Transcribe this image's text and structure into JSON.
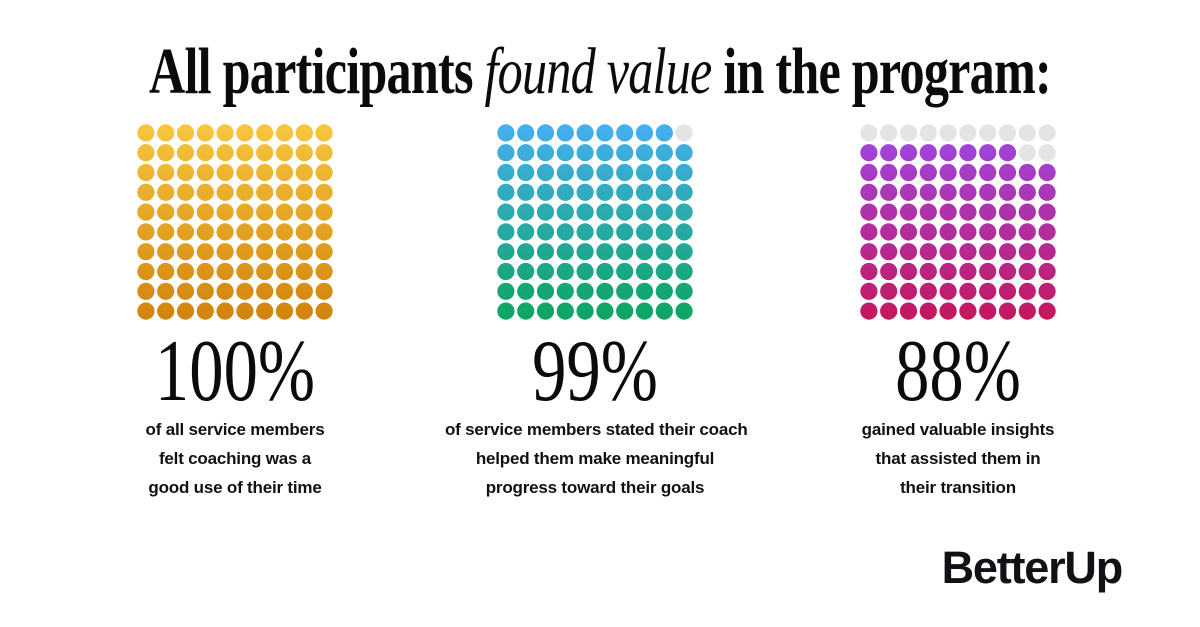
{
  "page": {
    "background_color": "#ffffff"
  },
  "title": {
    "prefix": "All participants ",
    "emphasis": "found value",
    "suffix": " in the program:"
  },
  "brand": {
    "logo_text": "BetterUp",
    "logo_color": "#121216"
  },
  "chart_data": {
    "type": "waffle",
    "title": "All participants found value in the program:",
    "unit": "%",
    "values": [
      100,
      99,
      88
    ],
    "categories": [
      "of all service members felt coaching was a good use of their time",
      "of service members stated their coach helped them make meaningful progress toward their goals",
      "gained valuable insights that assisted them in their transition"
    ],
    "grid": {
      "rows": 10,
      "cols": 10,
      "total_dots": 100,
      "empty_fill_order": "top-right, row by row"
    },
    "empty_dot_color": "#E4E4E4",
    "charts": [
      {
        "value": 100,
        "label": "100%",
        "gradient_top": "#F8C63F",
        "gradient_bottom": "#D1830B",
        "caption_lines": [
          "of all service members",
          "felt coaching was a",
          "good use of their time"
        ]
      },
      {
        "value": 99,
        "label": "99%",
        "gradient_top": "#45AFF2",
        "gradient_bottom": "#0CA55F",
        "caption_lines": [
          "of service members stated their coach",
          "helped them make meaningful",
          "progress toward their goals"
        ]
      },
      {
        "value": 88,
        "label": "88%",
        "gradient_top": "#9C49E9",
        "gradient_bottom": "#C5175C",
        "caption_lines": [
          "gained valuable insights",
          "that assisted them in",
          "their transition"
        ]
      }
    ]
  }
}
